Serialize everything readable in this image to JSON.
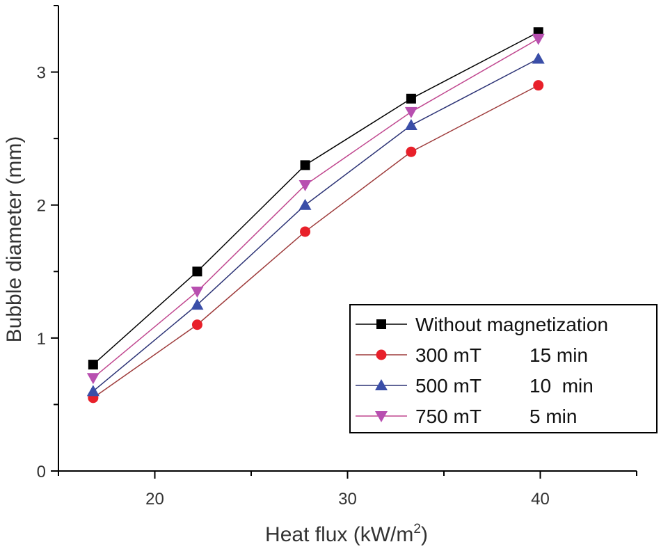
{
  "chart_data": {
    "type": "line",
    "title": "",
    "xlabel": "Heat flux (kW/m",
    "xlabel_sup": "2",
    "xlabel_close": ")",
    "ylabel": "Bubble diameter (mm)",
    "xlim": [
      15,
      45
    ],
    "ylim": [
      0,
      3.5
    ],
    "x_major_ticks": [
      20,
      30,
      40
    ],
    "x_minor_ticks": [
      15,
      25,
      35,
      45
    ],
    "y_major_ticks": [
      0,
      1,
      2,
      3
    ],
    "y_minor_ticks": [
      0.5,
      1.5,
      2.5,
      3.5
    ],
    "x_tick_labels": [
      "20",
      "30",
      "40"
    ],
    "y_tick_labels": [
      "0",
      "1",
      "2",
      "3"
    ],
    "legend_position": "bottom-right",
    "series": [
      {
        "name": "Without magnetization",
        "legend_parts": [
          "Without magnetization"
        ],
        "marker": "square",
        "marker_color": "#000000",
        "line_color": "#000000",
        "x": [
          16.8,
          22.2,
          27.8,
          33.3,
          39.9
        ],
        "y": [
          0.8,
          1.5,
          2.3,
          2.8,
          3.3
        ]
      },
      {
        "name": "300 mT 15 min",
        "legend_parts": [
          "300 mT",
          "15 min"
        ],
        "marker": "circle",
        "marker_color": "#e8202a",
        "line_color": "#9e3b3b",
        "x": [
          16.8,
          22.2,
          27.8,
          33.3,
          39.9
        ],
        "y": [
          0.55,
          1.1,
          1.8,
          2.4,
          2.9
        ]
      },
      {
        "name": "500 mT 10 min",
        "legend_parts": [
          "500 mT",
          "10  min"
        ],
        "marker": "triangle-up",
        "marker_color": "#3a4ea8",
        "line_color": "#2b3275",
        "x": [
          16.8,
          22.2,
          27.8,
          33.3,
          39.9
        ],
        "y": [
          0.6,
          1.25,
          2.0,
          2.6,
          3.1
        ]
      },
      {
        "name": "750 mT 5 min",
        "legend_parts": [
          "750 mT",
          "5 min"
        ],
        "marker": "triangle-down",
        "marker_color": "#b84fb0",
        "line_color": "#c0478f",
        "x": [
          16.8,
          22.2,
          27.8,
          33.3,
          39.9
        ],
        "y": [
          0.7,
          1.35,
          2.15,
          2.7,
          3.25
        ]
      }
    ]
  }
}
